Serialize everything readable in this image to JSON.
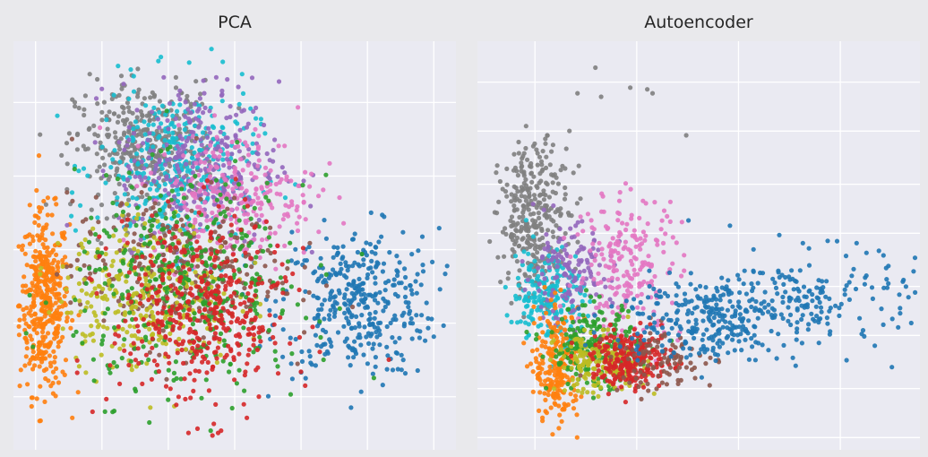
{
  "figure": {
    "background": "#e9e9ec",
    "plot_background": "#eaeaf2",
    "grid_color": "#ffffff"
  },
  "chart_data": [
    {
      "type": "scatter",
      "title": "PCA",
      "xlabel": "",
      "ylabel": "",
      "tick_labels_visible": false,
      "grid": true,
      "legend": "none",
      "series": [
        {
          "color": "#ff7f0e",
          "clusters": [
            {
              "cx": 0.07,
              "cy": 0.36,
              "sx": 0.028,
              "sy": 0.11,
              "n": 420
            }
          ]
        },
        {
          "color": "#1f77b4",
          "clusters": [
            {
              "cx": 0.78,
              "cy": 0.36,
              "sx": 0.09,
              "sy": 0.09,
              "n": 380
            }
          ]
        },
        {
          "color": "#7f7f7f",
          "clusters": [
            {
              "cx": 0.3,
              "cy": 0.74,
              "sx": 0.08,
              "sy": 0.08,
              "n": 380
            }
          ]
        },
        {
          "color": "#17becf",
          "clusters": [
            {
              "cx": 0.37,
              "cy": 0.69,
              "sx": 0.09,
              "sy": 0.1,
              "n": 320
            }
          ]
        },
        {
          "color": "#9467bd",
          "clusters": [
            {
              "cx": 0.42,
              "cy": 0.7,
              "sx": 0.09,
              "sy": 0.1,
              "n": 300
            }
          ]
        },
        {
          "color": "#e377c2",
          "clusters": [
            {
              "cx": 0.5,
              "cy": 0.62,
              "sx": 0.09,
              "sy": 0.08,
              "n": 260
            }
          ]
        },
        {
          "color": "#8c564b",
          "clusters": [
            {
              "cx": 0.37,
              "cy": 0.44,
              "sx": 0.12,
              "sy": 0.09,
              "n": 300
            }
          ]
        },
        {
          "color": "#bcbd22",
          "clusters": [
            {
              "cx": 0.3,
              "cy": 0.38,
              "sx": 0.1,
              "sy": 0.09,
              "n": 320
            }
          ]
        },
        {
          "color": "#2ca02c",
          "clusters": [
            {
              "cx": 0.4,
              "cy": 0.4,
              "sx": 0.13,
              "sy": 0.13,
              "n": 400
            }
          ]
        },
        {
          "color": "#d62728",
          "clusters": [
            {
              "cx": 0.42,
              "cy": 0.33,
              "sx": 0.1,
              "sy": 0.12,
              "n": 420
            }
          ]
        }
      ]
    },
    {
      "type": "scatter",
      "title": "Autoencoder",
      "xlabel": "",
      "ylabel": "",
      "tick_labels_visible": false,
      "grid": true,
      "legend": "none",
      "series": [
        {
          "color": "#7f7f7f",
          "clusters": [
            {
              "cx": 0.13,
              "cy": 0.57,
              "sx": 0.04,
              "sy": 0.09,
              "n": 320
            },
            {
              "cx": 0.36,
              "cy": 0.87,
              "sx": 0.1,
              "sy": 0.06,
              "n": 8
            }
          ]
        },
        {
          "color": "#17becf",
          "clusters": [
            {
              "cx": 0.16,
              "cy": 0.38,
              "sx": 0.04,
              "sy": 0.06,
              "n": 200
            }
          ]
        },
        {
          "color": "#9467bd",
          "clusters": [
            {
              "cx": 0.2,
              "cy": 0.43,
              "sx": 0.05,
              "sy": 0.06,
              "n": 140
            }
          ]
        },
        {
          "color": "#e377c2",
          "clusters": [
            {
              "cx": 0.34,
              "cy": 0.45,
              "sx": 0.06,
              "sy": 0.09,
              "n": 220
            }
          ]
        },
        {
          "color": "#ff7f0e",
          "clusters": [
            {
              "cx": 0.18,
              "cy": 0.2,
              "sx": 0.025,
              "sy": 0.07,
              "n": 220
            }
          ]
        },
        {
          "color": "#2ca02c",
          "clusters": [
            {
              "cx": 0.26,
              "cy": 0.25,
              "sx": 0.05,
              "sy": 0.05,
              "n": 200
            }
          ]
        },
        {
          "color": "#bcbd22",
          "clusters": [
            {
              "cx": 0.28,
              "cy": 0.21,
              "sx": 0.05,
              "sy": 0.035,
              "n": 180
            }
          ]
        },
        {
          "color": "#d62728",
          "clusters": [
            {
              "cx": 0.35,
              "cy": 0.22,
              "sx": 0.045,
              "sy": 0.035,
              "n": 240
            }
          ]
        },
        {
          "color": "#8c564b",
          "clusters": [
            {
              "cx": 0.42,
              "cy": 0.22,
              "sx": 0.06,
              "sy": 0.04,
              "n": 90
            }
          ]
        },
        {
          "color": "#1f77b4",
          "clusters": [
            {
              "cx": 0.5,
              "cy": 0.32,
              "sx": 0.1,
              "sy": 0.05,
              "n": 250
            },
            {
              "cx": 0.76,
              "cy": 0.37,
              "sx": 0.12,
              "sy": 0.06,
              "n": 200
            }
          ]
        }
      ]
    }
  ]
}
